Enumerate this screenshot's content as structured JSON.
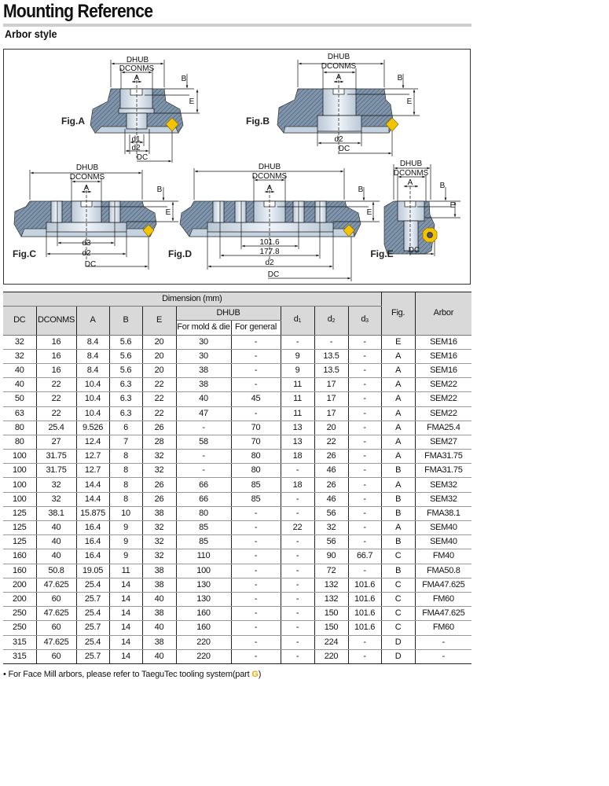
{
  "header": {
    "title": "Mounting Reference",
    "subtitle": "Arbor style"
  },
  "figures": {
    "labels": {
      "dhub": "DHUB",
      "dconms": "DCONMS",
      "a": "A",
      "b": "B",
      "e": "E",
      "d1": "d1",
      "d2": "d2",
      "d3": "d3",
      "dc": "DC",
      "d_101": "101.6",
      "d_177": "177.8"
    },
    "fig_a": "Fig.A",
    "fig_b": "Fig.B",
    "fig_c": "Fig.C",
    "fig_d": "Fig.D",
    "fig_e": "Fig.E",
    "colors": {
      "body": "#8095ab",
      "bore": "#d6e0ea",
      "insert": "#f5c400"
    }
  },
  "table": {
    "group_header": "Dimension (mm)",
    "headers": {
      "dc": "DC",
      "dconms": "DCONMS",
      "a": "A",
      "b": "B",
      "e": "E",
      "dhub": "DHUB",
      "mold": "For mold & die",
      "general": "For general",
      "d1": "d",
      "d1_sub": "1",
      "d2": "d",
      "d2_sub": "2",
      "d3": "d",
      "d3_sub": "3",
      "fig": "Fig.",
      "arbor": "Arbor"
    },
    "rows": [
      [
        "32",
        "16",
        "8.4",
        "5.6",
        "20",
        "30",
        "-",
        "-",
        "-",
        "-",
        "E",
        "SEM16"
      ],
      [
        "32",
        "16",
        "8.4",
        "5.6",
        "20",
        "30",
        "-",
        "9",
        "13.5",
        "-",
        "A",
        "SEM16"
      ],
      [
        "40",
        "16",
        "8.4",
        "5.6",
        "20",
        "38",
        "-",
        "9",
        "13.5",
        "-",
        "A",
        "SEM16"
      ],
      [
        "40",
        "22",
        "10.4",
        "6.3",
        "22",
        "38",
        "-",
        "11",
        "17",
        "-",
        "A",
        "SEM22"
      ],
      [
        "50",
        "22",
        "10.4",
        "6.3",
        "22",
        "40",
        "45",
        "11",
        "17",
        "-",
        "A",
        "SEM22"
      ],
      [
        "63",
        "22",
        "10.4",
        "6.3",
        "22",
        "47",
        "-",
        "11",
        "17",
        "-",
        "A",
        "SEM22"
      ],
      [
        "80",
        "25.4",
        "9.526",
        "6",
        "26",
        "-",
        "70",
        "13",
        "20",
        "-",
        "A",
        "FMA25.4"
      ],
      [
        "80",
        "27",
        "12.4",
        "7",
        "28",
        "58",
        "70",
        "13",
        "22",
        "-",
        "A",
        "SEM27"
      ],
      [
        "100",
        "31.75",
        "12.7",
        "8",
        "32",
        "-",
        "80",
        "18",
        "26",
        "-",
        "A",
        "FMA31.75"
      ],
      [
        "100",
        "31.75",
        "12.7",
        "8",
        "32",
        "-",
        "80",
        "-",
        "46",
        "-",
        "B",
        "FMA31.75"
      ],
      [
        "100",
        "32",
        "14.4",
        "8",
        "26",
        "66",
        "85",
        "18",
        "26",
        "-",
        "A",
        "SEM32"
      ],
      [
        "100",
        "32",
        "14.4",
        "8",
        "26",
        "66",
        "85",
        "-",
        "46",
        "-",
        "B",
        "SEM32"
      ],
      [
        "125",
        "38.1",
        "15.875",
        "10",
        "38",
        "80",
        "-",
        "-",
        "56",
        "-",
        "B",
        "FMA38.1"
      ],
      [
        "125",
        "40",
        "16.4",
        "9",
        "32",
        "85",
        "-",
        "22",
        "32",
        "-",
        "A",
        "SEM40"
      ],
      [
        "125",
        "40",
        "16.4",
        "9",
        "32",
        "85",
        "-",
        "-",
        "56",
        "-",
        "B",
        "SEM40"
      ],
      [
        "160",
        "40",
        "16.4",
        "9",
        "32",
        "110",
        "-",
        "-",
        "90",
        "66.7",
        "C",
        "FM40"
      ],
      [
        "160",
        "50.8",
        "19.05",
        "11",
        "38",
        "100",
        "-",
        "-",
        "72",
        "-",
        "B",
        "FMA50.8"
      ],
      [
        "200",
        "47.625",
        "25.4",
        "14",
        "38",
        "130",
        "-",
        "-",
        "132",
        "101.6",
        "C",
        "FMA47.625"
      ],
      [
        "200",
        "60",
        "25.7",
        "14",
        "40",
        "130",
        "-",
        "-",
        "132",
        "101.6",
        "C",
        "FM60"
      ],
      [
        "250",
        "47.625",
        "25.4",
        "14",
        "38",
        "160",
        "-",
        "-",
        "150",
        "101.6",
        "C",
        "FMA47.625"
      ],
      [
        "250",
        "60",
        "25.7",
        "14",
        "40",
        "160",
        "-",
        "-",
        "150",
        "101.6",
        "C",
        "FM60"
      ],
      [
        "315",
        "47.625",
        "25.4",
        "14",
        "38",
        "220",
        "-",
        "-",
        "224",
        "-",
        "D",
        "-"
      ],
      [
        "315",
        "60",
        "25.7",
        "14",
        "40",
        "220",
        "-",
        "-",
        "220",
        "-",
        "D",
        "-"
      ]
    ]
  },
  "footnote": {
    "text": "• For Face Mill arbors, please refer to TaeguTec tooling system(part ",
    "part": "G",
    "close": ")"
  }
}
